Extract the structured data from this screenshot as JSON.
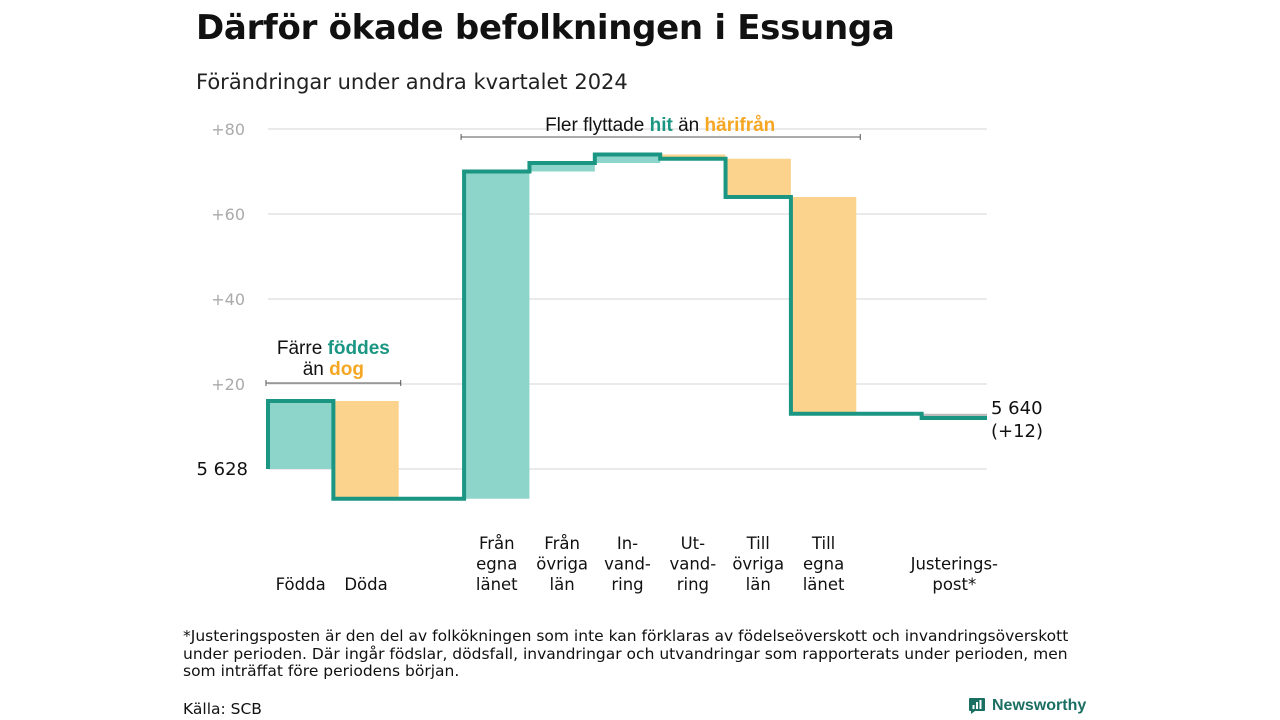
{
  "title": "Därför ökade befolkningen i Essunga",
  "subtitle": "Förändringar under andra kvartalet 2024",
  "colors": {
    "increase": "#8dd4ca",
    "decrease": "#fbd38d",
    "line": "#1a9683",
    "adjustment": "#bbbbbb",
    "grid": "#dddddd",
    "tick": "#aaaaaa",
    "teal_text": "#1a9683",
    "orange_text": "#f5a623"
  },
  "chart_data": {
    "type": "waterfall",
    "start_value": 5628,
    "start_label": "5 628",
    "end_value": 5640,
    "end_label_value": "5 640",
    "end_label_change": "(+12)",
    "y_ticks": [
      {
        "value": 80,
        "label": "+80"
      },
      {
        "value": 60,
        "label": "+60"
      },
      {
        "value": 40,
        "label": "+40"
      },
      {
        "value": 20,
        "label": "+20"
      }
    ],
    "y_min_relative": -10,
    "y_max_relative": 84,
    "steps": [
      {
        "label": [
          "Födda"
        ],
        "change": 16
      },
      {
        "label": [
          "Döda"
        ],
        "change": -23
      },
      {
        "label": [],
        "change": 0
      },
      {
        "label": [
          "Från",
          "egna",
          "länet"
        ],
        "change": 77
      },
      {
        "label": [
          "Från",
          "övriga",
          "län"
        ],
        "change": 2
      },
      {
        "label": [
          "In-",
          "vand-",
          "ring"
        ],
        "change": 2
      },
      {
        "label": [
          "Ut-",
          "vand-",
          "ring"
        ],
        "change": -1
      },
      {
        "label": [
          "Till",
          "övriga",
          "län"
        ],
        "change": -9
      },
      {
        "label": [
          "Till",
          "egna",
          "länet"
        ],
        "change": -51
      },
      {
        "label": [],
        "change": 0
      },
      {
        "label": [
          "Justerings-",
          "post*"
        ],
        "change": -1
      }
    ],
    "annotations": [
      {
        "group": "births",
        "prefix": "Färre",
        "highlight1": "föddes",
        "middle": "än",
        "highlight2": "dog",
        "from_step": 0,
        "to_step": 1
      },
      {
        "group": "migration",
        "prefix": "Fler flyttade",
        "highlight1": "hit",
        "middle": "än",
        "highlight2": "härifrån",
        "from_step": 3,
        "to_step": 8
      }
    ]
  },
  "footnote": "*Justeringsposten är den del av folkökningen som inte kan förklaras av födelseöverskott och invandringsöverskott under perioden. Där ingår födslar, dödsfall, invandringar och utvandringar som rapporterats under perioden, men som inträffat före periodens början.",
  "source": "Källa: SCB",
  "brand": {
    "name": "Newsworthy",
    "icon": "newsworthy-logo-icon"
  }
}
